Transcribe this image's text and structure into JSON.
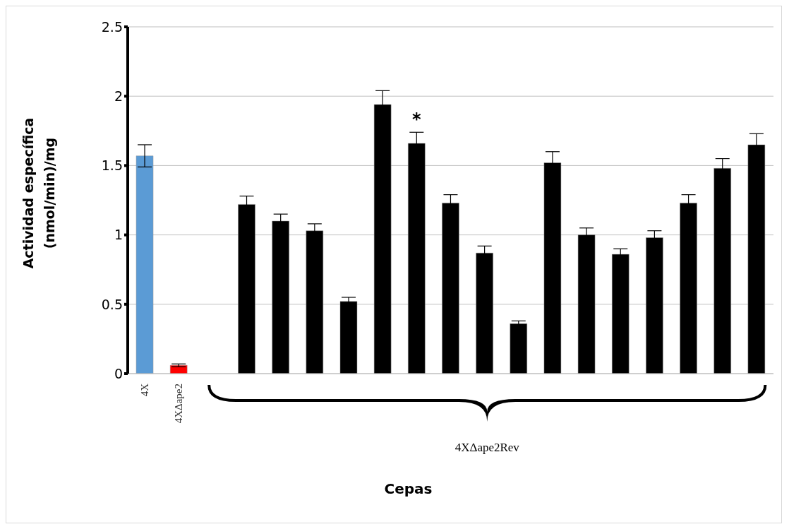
{
  "chart_data": {
    "type": "bar",
    "xlabel": "Cepas",
    "ylabel": "Actividad específica\n(nmol/min)/mg",
    "categories": [
      "4X",
      "4XΔape2",
      null,
      null,
      null,
      null,
      null,
      null,
      null,
      null,
      null,
      null,
      null,
      null,
      null,
      null,
      null,
      null,
      null
    ],
    "values": [
      1.57,
      0.06,
      null,
      1.22,
      1.1,
      1.03,
      0.52,
      1.94,
      1.66,
      1.23,
      0.87,
      0.36,
      1.52,
      1.0,
      0.86,
      0.98,
      1.23,
      1.48,
      1.65
    ],
    "errors": [
      0.08,
      0.01,
      null,
      0.06,
      0.05,
      0.05,
      0.03,
      0.1,
      0.08,
      0.06,
      0.05,
      0.02,
      0.08,
      0.05,
      0.04,
      0.05,
      0.06,
      0.07,
      0.08
    ],
    "colors": [
      "#5b9bd5",
      "#ff0000",
      null,
      "#000000",
      "#000000",
      "#000000",
      "#000000",
      "#000000",
      "#000000",
      "#000000",
      "#000000",
      "#000000",
      "#000000",
      "#000000",
      "#000000",
      "#000000",
      "#000000",
      "#000000",
      "#000000"
    ],
    "ylim": [
      0,
      2.5
    ],
    "yticks": [
      0,
      0.5,
      1,
      1.5,
      2,
      2.5
    ],
    "grid": "y",
    "value_labels": [
      null,
      null,
      null,
      null,
      null,
      null,
      null,
      null,
      "*",
      null,
      null,
      null,
      null,
      null,
      null,
      null,
      null,
      null,
      null
    ],
    "annotations": [
      "4XΔape2Rev"
    ]
  }
}
